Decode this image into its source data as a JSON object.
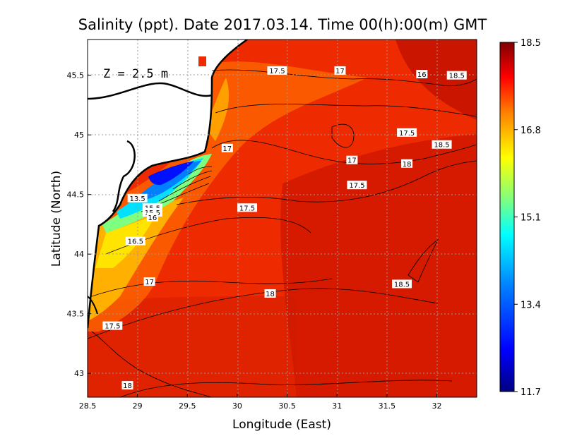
{
  "chart_data": {
    "type": "heatmap",
    "title": "Salinity (ppt). Date 2017.03.14. Time 00(h):00(m) GMT",
    "xlabel": "Longitude (East)",
    "ylabel": "Latitude (North)",
    "xlim": [
      28.5,
      32.4
    ],
    "ylim": [
      42.8,
      45.8
    ],
    "x_ticks": [
      "28.5",
      "29",
      "29.5",
      "30",
      "30.5",
      "31",
      "31.5",
      "32"
    ],
    "y_ticks": [
      "43",
      "43.5",
      "44",
      "44.5",
      "45",
      "45.5"
    ],
    "grid": true,
    "annotation": "Z = 2.5 m",
    "colorbar": {
      "min": 11.7,
      "max": 18.5,
      "ticks": [
        "18.5",
        "16.8",
        "15.1",
        "13.4",
        "11.7"
      ],
      "colormap": [
        "#00007f",
        "#0000ff",
        "#007fff",
        "#00ffff",
        "#7fff7f",
        "#ffff00",
        "#ff7f00",
        "#ff0000",
        "#7f0000"
      ]
    },
    "contour_labels": [
      {
        "text": "17.5",
        "lon": 30.4,
        "lat": 45.54
      },
      {
        "text": "17",
        "lon": 31.03,
        "lat": 45.54
      },
      {
        "text": "16",
        "lon": 31.85,
        "lat": 45.51
      },
      {
        "text": "18.5",
        "lon": 32.2,
        "lat": 45.5
      },
      {
        "text": "17.5",
        "lon": 31.7,
        "lat": 45.02
      },
      {
        "text": "18.5",
        "lon": 32.05,
        "lat": 44.92
      },
      {
        "text": "17",
        "lon": 29.9,
        "lat": 44.89
      },
      {
        "text": "17",
        "lon": 31.15,
        "lat": 44.79
      },
      {
        "text": "18",
        "lon": 31.7,
        "lat": 44.76
      },
      {
        "text": "17.5",
        "lon": 31.2,
        "lat": 44.58
      },
      {
        "text": "13.5",
        "lon": 29.0,
        "lat": 44.47
      },
      {
        "text": "15.5",
        "lon": 29.15,
        "lat": 44.39
      },
      {
        "text": "15.5",
        "lon": 29.15,
        "lat": 44.35
      },
      {
        "text": "16",
        "lon": 29.15,
        "lat": 44.31
      },
      {
        "text": "17.5",
        "lon": 30.1,
        "lat": 44.39
      },
      {
        "text": "16.5",
        "lon": 28.98,
        "lat": 44.11
      },
      {
        "text": "17",
        "lon": 29.12,
        "lat": 43.77
      },
      {
        "text": "18",
        "lon": 30.33,
        "lat": 43.67
      },
      {
        "text": "18.5",
        "lon": 31.65,
        "lat": 43.75
      },
      {
        "text": "17.5",
        "lon": 28.75,
        "lat": 43.4
      },
      {
        "text": "18",
        "lon": 28.9,
        "lat": 42.9
      }
    ]
  },
  "colors": {
    "land": "#ffffff",
    "coast": "#000000",
    "sea_base": "#ee2a00"
  }
}
